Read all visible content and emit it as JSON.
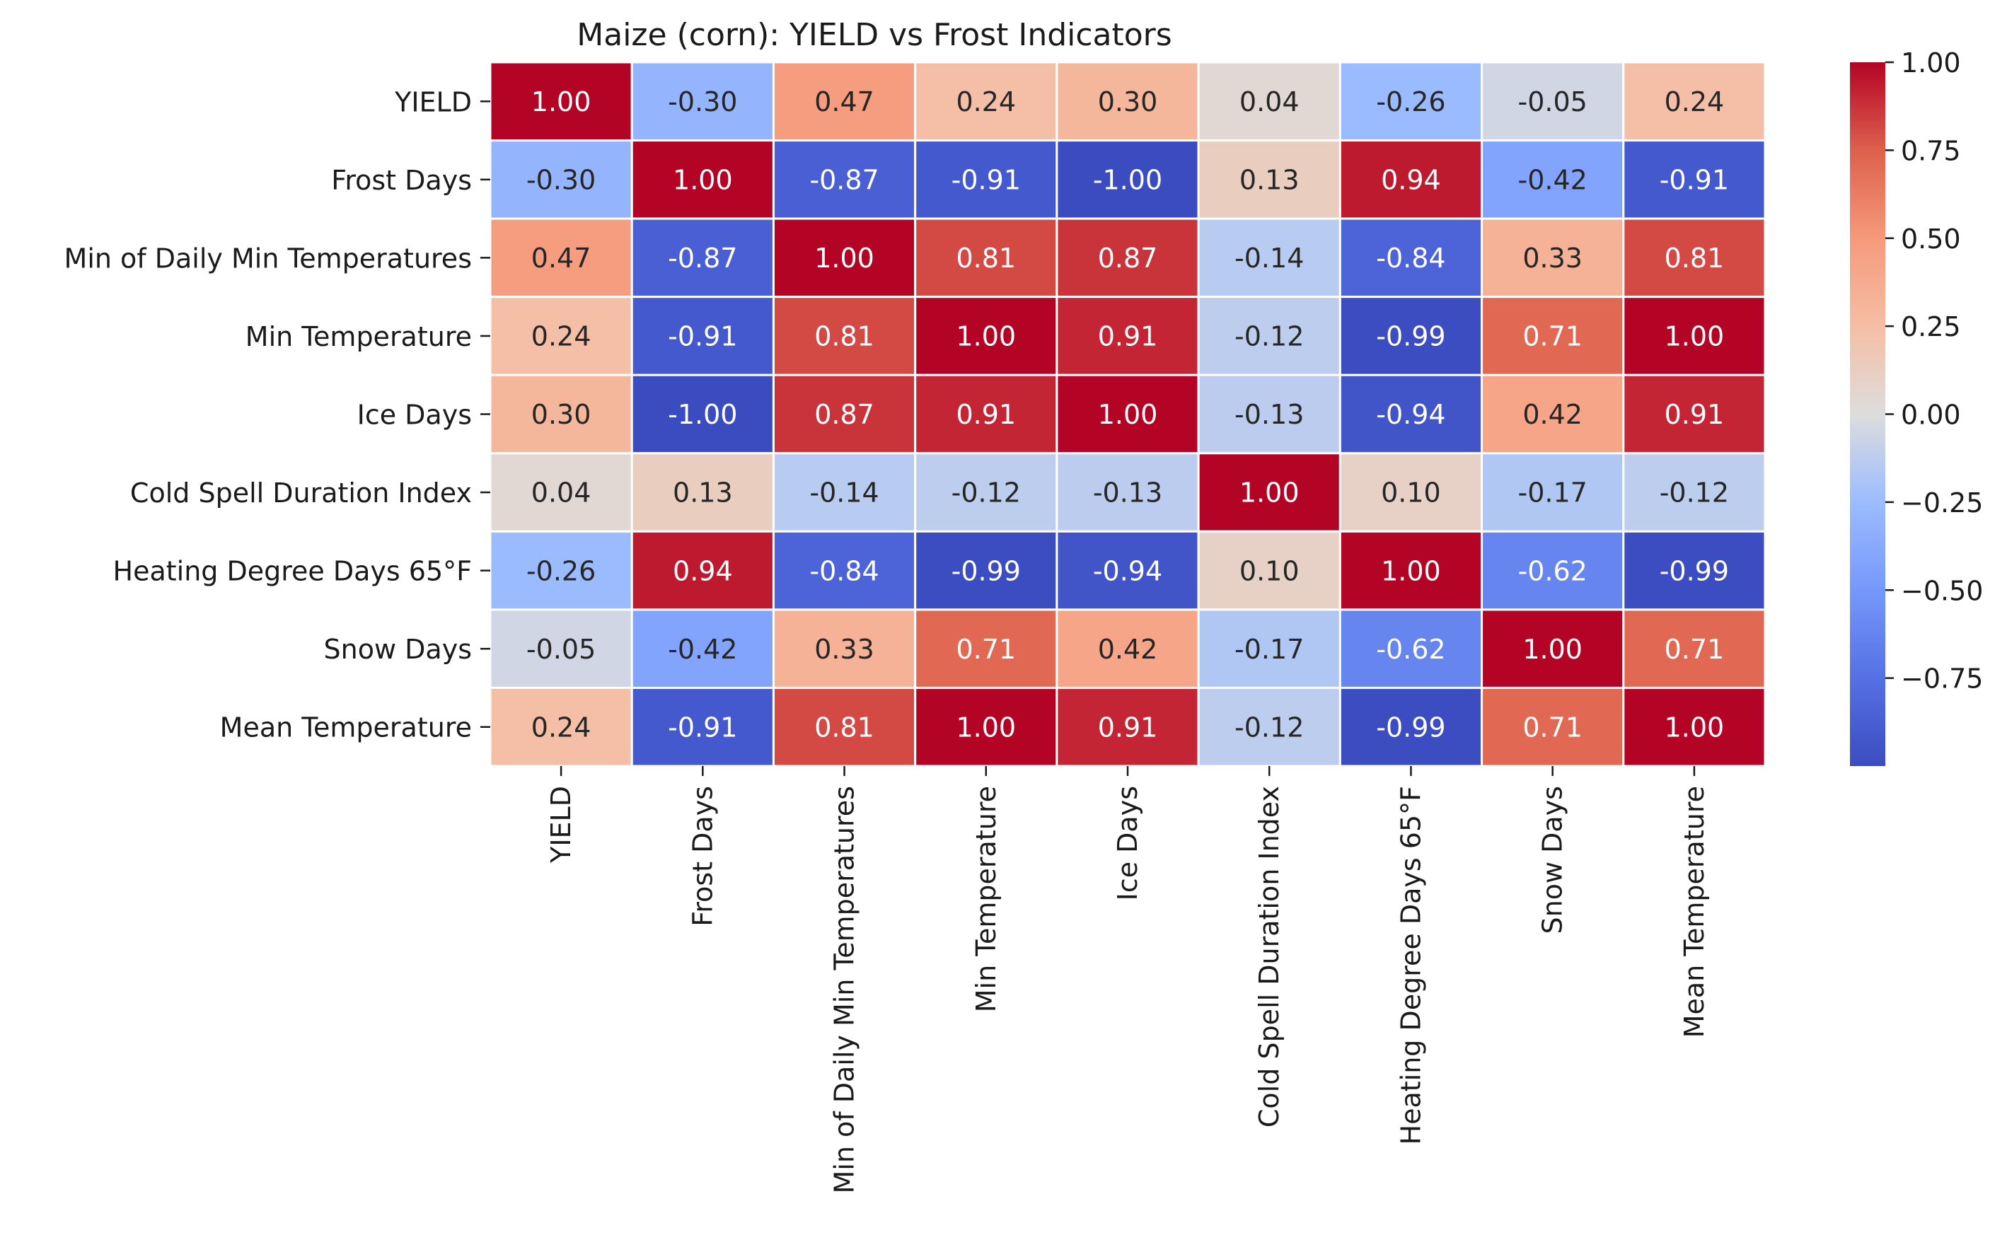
{
  "chart_data": {
    "type": "heatmap",
    "title": "Maize (corn): YIELD vs Frost Indicators",
    "row_labels": [
      "YIELD",
      "Frost Days",
      "Min of Daily Min Temperatures",
      "Min Temperature",
      "Ice Days",
      "Cold Spell Duration Index",
      "Heating Degree Days 65°F",
      "Snow Days",
      "Mean Temperature"
    ],
    "col_labels": [
      "YIELD",
      "Frost Days",
      "Min of Daily Min Temperatures",
      "Min Temperature",
      "Ice Days",
      "Cold Spell Duration Index",
      "Heating Degree Days 65°F",
      "Snow Days",
      "Mean Temperature"
    ],
    "values": [
      [
        1.0,
        -0.3,
        0.47,
        0.24,
        0.3,
        0.04,
        -0.26,
        -0.05,
        0.24
      ],
      [
        -0.3,
        1.0,
        -0.87,
        -0.91,
        -1.0,
        0.13,
        0.94,
        -0.42,
        -0.91
      ],
      [
        0.47,
        -0.87,
        1.0,
        0.81,
        0.87,
        -0.14,
        -0.84,
        0.33,
        0.81
      ],
      [
        0.24,
        -0.91,
        0.81,
        1.0,
        0.91,
        -0.12,
        -0.99,
        0.71,
        1.0
      ],
      [
        0.3,
        -1.0,
        0.87,
        0.91,
        1.0,
        -0.13,
        -0.94,
        0.42,
        0.91
      ],
      [
        0.04,
        0.13,
        -0.14,
        -0.12,
        -0.13,
        1.0,
        0.1,
        -0.17,
        -0.12
      ],
      [
        -0.26,
        0.94,
        -0.84,
        -0.99,
        -0.94,
        0.1,
        1.0,
        -0.62,
        -0.99
      ],
      [
        -0.05,
        -0.42,
        0.33,
        0.71,
        0.42,
        -0.17,
        -0.62,
        1.0,
        0.71
      ],
      [
        0.24,
        -0.91,
        0.81,
        1.0,
        0.91,
        -0.12,
        -0.99,
        0.71,
        1.0
      ]
    ],
    "value_range": [
      -1.0,
      1.0
    ],
    "colormap": "coolwarm",
    "colorbar_ticks": [
      1.0,
      0.75,
      0.5,
      0.25,
      0.0,
      -0.25,
      -0.5,
      -0.75
    ],
    "colorbar_tick_labels": [
      "1.00",
      "0.75",
      "0.50",
      "0.25",
      "0.00",
      "−0.25",
      "−0.50",
      "−0.75"
    ],
    "annotations": "values formatted to 2 decimals",
    "grid_lines_color": "#ffffff"
  }
}
